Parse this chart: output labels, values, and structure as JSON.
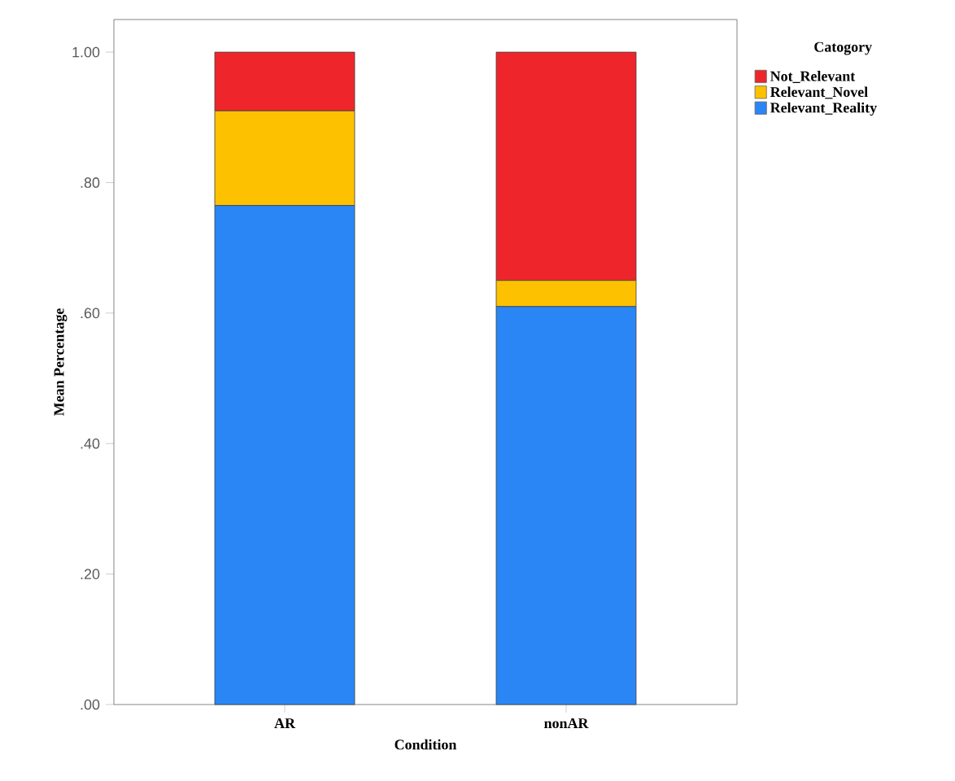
{
  "chart_data": {
    "type": "bar",
    "stacked": true,
    "xlabel": "Condition",
    "ylabel": "Mean Percentage",
    "legend_title": "Catogory",
    "legend": "right",
    "categories": [
      "AR",
      "nonAR"
    ],
    "series": [
      {
        "name": "Relevant_Reality",
        "color": "#2a86f5",
        "values": [
          0.765,
          0.61
        ]
      },
      {
        "name": "Relevant_Novel",
        "color": "#fdc100",
        "values": [
          0.145,
          0.04
        ]
      },
      {
        "name": "Not_Relevant",
        "color": "#ee262c",
        "values": [
          0.09,
          0.35
        ]
      }
    ],
    "ylim": [
      0,
      1.05
    ],
    "yticks": [
      {
        "value": 0,
        "label": ".00"
      },
      {
        "value": 0.2,
        "label": ".20"
      },
      {
        "value": 0.4,
        "label": ".40"
      },
      {
        "value": 0.6,
        "label": ".60"
      },
      {
        "value": 0.8,
        "label": ".80"
      },
      {
        "value": 1.0,
        "label": "1.00"
      }
    ],
    "grid": false
  }
}
